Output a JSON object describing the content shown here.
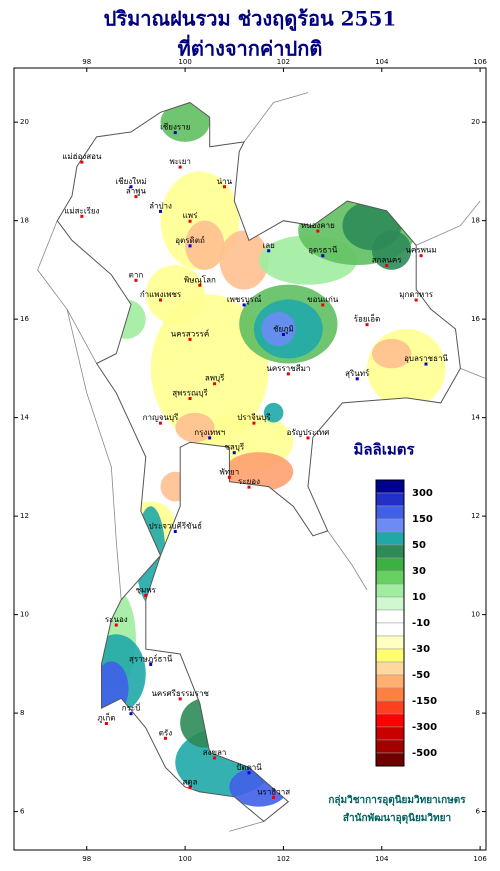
{
  "title": [
    "ปริมาณฝนรวม ช่วงฤดูร้อน 2551",
    "ที่ต่างจากค่าปกติ"
  ],
  "map": {
    "xlim": [
      96.52,
      106.12
    ],
    "ylim": [
      5.22,
      21.1
    ],
    "xticks": [
      98,
      100,
      102,
      104,
      106
    ],
    "yticks": [
      6,
      8,
      10,
      12,
      14,
      16,
      18,
      20
    ],
    "land_color": "#ffffff",
    "border_color": "#555555",
    "provinces": [
      "เชียงราย",
      "แม่ฮ่องสอน",
      "พะเยา",
      "เชียงใหม่",
      "ลำพูน",
      "น่าน",
      "ลำปาง",
      "แพร่",
      "แม่สะเรียง",
      "อุตรดิตถ์",
      "ตาก",
      "หนองคาย",
      "อุดรธานี",
      "สกลนคร",
      "นครพนม",
      "เลย",
      "พิษณุโลก",
      "กำแพงเพชร",
      "เพชรบูรณ์",
      "ขอนแก่น",
      "มุกดาหาร",
      "ชัยภูมิ",
      "นครสวรรค์",
      "ร้อยเอ็ด",
      "อุบลราชธานี",
      "ลพบุรี",
      "นครราชสีมา",
      "สุรินทร์",
      "สุพรรณบุรี",
      "กาญจนบุรี",
      "กรุงเทพฯ",
      "ปราจีนบุรี",
      "อรัญประเทศ",
      "ชลบุรี",
      "พัทยา",
      "ระยอง",
      "ประจวบคีรีขันธ์",
      "ชุมพร",
      "ระนอง",
      "สุราษฎร์ธานี",
      "ภูเก็ต",
      "นครศรีธรรมราช",
      "กระบี่",
      "ตรัง",
      "สงขลา",
      "ปัตตานี",
      "นราธิวาส",
      "สตูล"
    ]
  },
  "legend": {
    "title": "มิลลิเมตร",
    "colors": [
      "#000090",
      "#2030c8",
      "#4060e8",
      "#6a8cf4",
      "#20a8a8",
      "#2e8b57",
      "#3cb043",
      "#66d060",
      "#a0eca0",
      "#d0f8d0",
      "#ffffff",
      "#ffffff",
      "#ffffc0",
      "#ffff70",
      "#ffd8a0",
      "#ffb070",
      "#ff8040",
      "#ff4020",
      "#ff0000",
      "#c80000",
      "#a00000",
      "#700000"
    ],
    "labels": [
      300,
      150,
      50,
      30,
      10,
      -10,
      -30,
      -50,
      -150,
      -300,
      -500
    ]
  },
  "credits": [
    "กลุ่มวิชาการอุตุนิยมวิทยาเกษตร",
    "สำนักพัฒนาอุตุนิยมวิทยา"
  ]
}
